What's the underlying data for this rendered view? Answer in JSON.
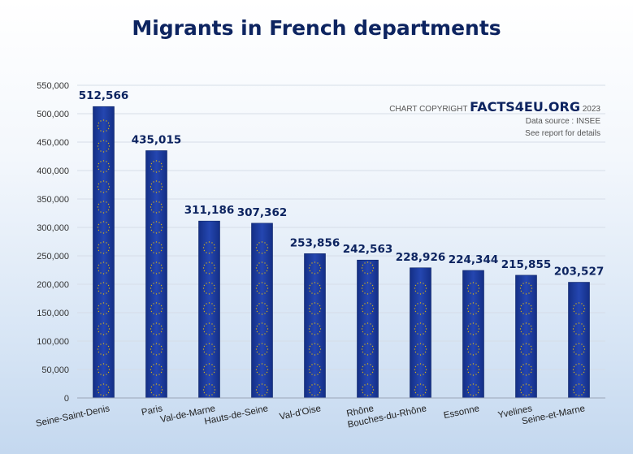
{
  "title": "Migrants in French departments",
  "credit": {
    "prefix": "CHART COPYRIGHT",
    "brand": "FACTS4EU.ORG",
    "year": "2023",
    "source": "Data source : INSEE",
    "note": "See report for details"
  },
  "chart_data": {
    "type": "bar",
    "title": "Migrants in French departments",
    "xlabel": "",
    "ylabel": "",
    "categories": [
      "Seine-Saint-Denis",
      "Paris",
      "Val-de-Marne",
      "Hauts-de-Seine",
      "Val-d'Oise",
      "Rhône",
      "Bouches-du-Rhône",
      "Essonne",
      "Yvelines",
      "Seine-et-Marne"
    ],
    "values": [
      512566,
      435015,
      311186,
      307362,
      253856,
      242563,
      228926,
      224344,
      215855,
      203527
    ],
    "value_labels": [
      "512,566",
      "435,015",
      "311,186",
      "307,362",
      "253,856",
      "242,563",
      "228,926",
      "224,344",
      "215,855",
      "203,527"
    ],
    "ylim": [
      0,
      550000
    ],
    "yticks": [
      0,
      50000,
      100000,
      150000,
      200000,
      250000,
      300000,
      350000,
      400000,
      450000,
      500000,
      550000
    ],
    "ytick_labels": [
      "0",
      "50,000",
      "100,000",
      "150,000",
      "200,000",
      "250,000",
      "300,000",
      "350,000",
      "400,000",
      "450,000",
      "500,000",
      "550,000"
    ],
    "grid": true,
    "bar_color": "#1a3a9a",
    "star_color": "#f2c200"
  }
}
